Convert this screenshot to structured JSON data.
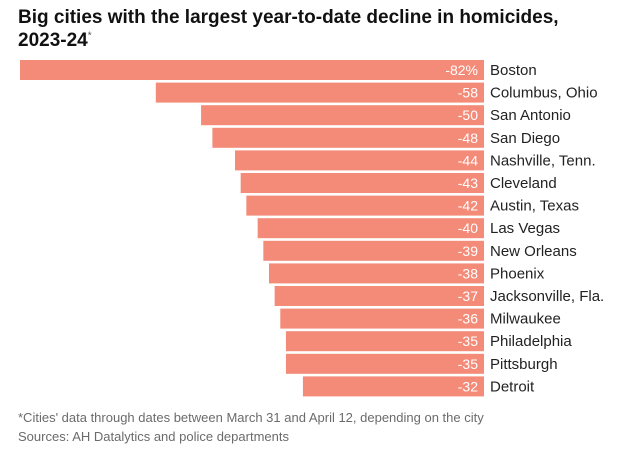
{
  "title": "Big cities with the largest year-to-date decline in homicides, 2023-24",
  "title_marker": "*",
  "colors": {
    "bar": "#F48B78",
    "bar_text": "#ffffff",
    "category_text": "#222222"
  },
  "chart_data": {
    "type": "bar",
    "orientation": "horizontal",
    "title": "Big cities with the largest year-to-date decline in homicides, 2023-24",
    "categories": [
      "Boston",
      "Columbus, Ohio",
      "San Antonio",
      "San Diego",
      "Nashville, Tenn.",
      "Cleveland",
      "Austin, Texas",
      "Las Vegas",
      "New Orleans",
      "Phoenix",
      "Jacksonville, Fla.",
      "Milwaukee",
      "Philadelphia",
      "Pittsburgh",
      "Detroit"
    ],
    "values": [
      -82,
      -58,
      -50,
      -48,
      -44,
      -43,
      -42,
      -40,
      -39,
      -38,
      -37,
      -36,
      -35,
      -35,
      -32
    ],
    "data_labels": [
      "-82%",
      "-58",
      "-50",
      "-48",
      "-44",
      "-43",
      "-42",
      "-40",
      "-39",
      "-38",
      "-37",
      "-36",
      "-35",
      "-35",
      "-32"
    ],
    "unit": "%",
    "xlim": [
      -82,
      0
    ],
    "grid": false,
    "legend": "none"
  },
  "footnote": {
    "line1": "*Cities' data through dates between March 31 and April 12, depending on the city",
    "line2": "Sources: AH Datalytics and police departments"
  }
}
